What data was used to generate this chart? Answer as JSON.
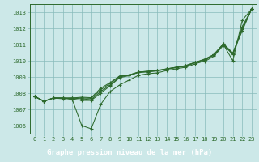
{
  "hours": [
    0,
    1,
    2,
    3,
    4,
    5,
    6,
    7,
    8,
    9,
    10,
    11,
    12,
    13,
    14,
    15,
    16,
    17,
    18,
    19,
    20,
    21,
    22,
    23
  ],
  "line1": [
    1007.8,
    1007.5,
    1007.7,
    1007.7,
    1007.6,
    1006.0,
    1005.8,
    1007.3,
    1008.1,
    1008.5,
    1008.8,
    1009.1,
    1009.2,
    1009.25,
    1009.4,
    1009.5,
    1009.6,
    1009.8,
    1010.0,
    1010.4,
    1011.0,
    1010.0,
    1012.5,
    1013.2
  ],
  "line2": [
    1007.8,
    1007.5,
    1007.7,
    1007.65,
    1007.7,
    1007.65,
    1007.6,
    1008.1,
    1008.5,
    1009.0,
    1009.1,
    1009.28,
    1009.32,
    1009.38,
    1009.48,
    1009.58,
    1009.65,
    1009.88,
    1009.95,
    1010.28,
    1010.95,
    1010.45,
    1011.85,
    1013.2
  ],
  "line3": [
    1007.8,
    1007.5,
    1007.7,
    1007.7,
    1007.65,
    1007.55,
    1007.55,
    1008.0,
    1008.45,
    1008.95,
    1009.08,
    1009.28,
    1009.32,
    1009.38,
    1009.48,
    1009.58,
    1009.68,
    1009.88,
    1010.08,
    1010.38,
    1011.05,
    1010.48,
    1011.95,
    1013.2
  ],
  "line4": [
    1007.8,
    1007.5,
    1007.7,
    1007.7,
    1007.7,
    1007.7,
    1007.68,
    1008.2,
    1008.6,
    1009.05,
    1009.12,
    1009.3,
    1009.35,
    1009.4,
    1009.5,
    1009.6,
    1009.7,
    1009.9,
    1010.05,
    1010.35,
    1011.0,
    1010.38,
    1012.0,
    1013.2
  ],
  "line5": [
    1007.8,
    1007.5,
    1007.7,
    1007.7,
    1007.7,
    1007.75,
    1007.72,
    1008.3,
    1008.65,
    1009.05,
    1009.12,
    1009.3,
    1009.35,
    1009.4,
    1009.5,
    1009.6,
    1009.7,
    1009.9,
    1010.1,
    1010.38,
    1011.05,
    1010.4,
    1012.1,
    1013.2
  ],
  "ylim": [
    1005.5,
    1013.5
  ],
  "yticks": [
    1006,
    1007,
    1008,
    1009,
    1010,
    1011,
    1012,
    1013
  ],
  "line_color": "#2d6a2d",
  "bg_color": "#cce8e8",
  "grid_color": "#88bbbb",
  "xlabel": "Graphe pression niveau de la mer (hPa)",
  "xlabel_bg": "#1a5218"
}
